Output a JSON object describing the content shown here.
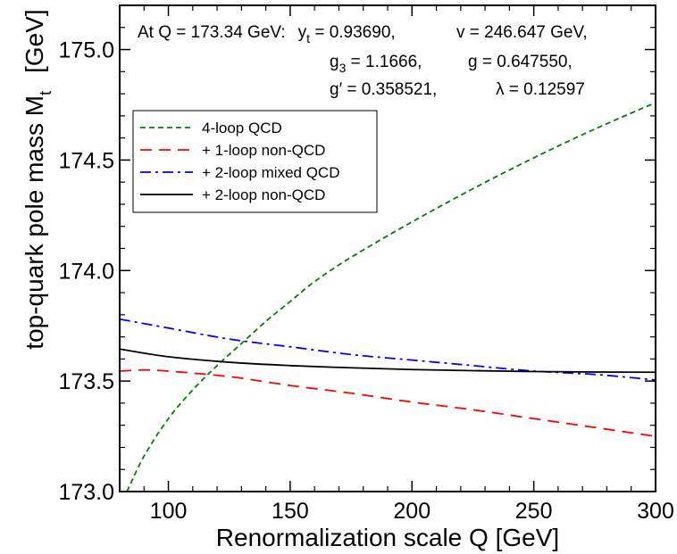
{
  "chart_data": {
    "type": "line",
    "xlabel": "Renormalization scale Q  [GeV]",
    "ylabel": "top-quark pole mass  M",
    "ylabel_sub": "t",
    "ylabel_unit": "[GeV]",
    "xlim": [
      80,
      300
    ],
    "ylim": [
      173.0,
      175.2
    ],
    "x_ticks": [
      "100",
      "150",
      "200",
      "250",
      "300"
    ],
    "y_ticks": [
      "173.0",
      "173.5",
      "174.0",
      "174.5",
      "175.0"
    ],
    "grid": false,
    "legend_position": "upper-left",
    "annotation": {
      "line1_prefix": "At Q = 173.34 GeV:",
      "yt_sym": "y",
      "yt_sub": "t",
      "yt_val": " = 0.93690,",
      "v_text": "v = 246.647 GeV,",
      "g3_sym": "g",
      "g3_sub": "3",
      "g3_val": " = 1.1666,",
      "g_text": "g = 0.647550,",
      "gp_text": "g′ = 0.358521,",
      "lambda_text": "λ = 0.12597"
    },
    "series": [
      {
        "name": "4-loop QCD",
        "color": "#008000",
        "dash": "short-dash",
        "x": [
          83,
          90,
          100,
          110,
          120,
          130,
          140,
          150,
          160,
          175,
          200,
          225,
          250,
          275,
          300
        ],
        "y": [
          173.0,
          173.16,
          173.33,
          173.46,
          173.57,
          173.67,
          173.77,
          173.86,
          173.95,
          174.06,
          174.22,
          174.37,
          174.51,
          174.64,
          174.76
        ]
      },
      {
        "name": "+ 1-loop non-QCD",
        "color": "#ff0000",
        "dash": "long-dash",
        "x": [
          80,
          90,
          100,
          125,
          150,
          175,
          200,
          225,
          250,
          275,
          300
        ],
        "y": [
          173.545,
          173.55,
          173.545,
          173.52,
          173.48,
          173.445,
          173.405,
          173.37,
          173.33,
          173.29,
          173.25
        ]
      },
      {
        "name": "+ 2-loop mixed QCD",
        "color": "#0000ff",
        "dash": "dash-dot",
        "x": [
          80,
          100,
          125,
          150,
          175,
          200,
          225,
          250,
          275,
          300
        ],
        "y": [
          173.78,
          173.74,
          173.69,
          173.655,
          173.62,
          173.595,
          173.57,
          173.545,
          173.53,
          173.505
        ]
      },
      {
        "name": "+ 2-loop non-QCD",
        "color": "#000000",
        "dash": "solid",
        "x": [
          80,
          100,
          125,
          150,
          175,
          200,
          225,
          250,
          275,
          300
        ],
        "y": [
          173.645,
          173.61,
          173.585,
          173.57,
          173.56,
          173.552,
          173.547,
          173.543,
          173.541,
          173.54
        ]
      }
    ]
  }
}
